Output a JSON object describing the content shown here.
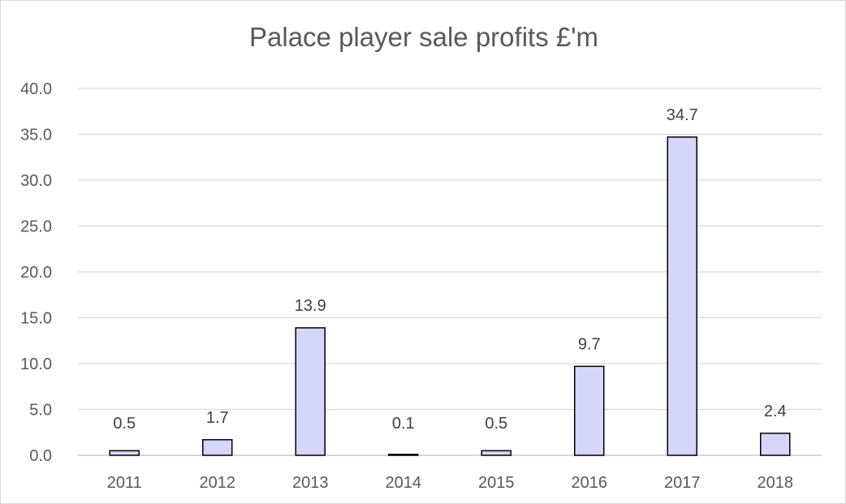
{
  "chart_data": {
    "type": "bar",
    "title": "Palace player sale profits £'m",
    "categories": [
      "2011",
      "2012",
      "2013",
      "2014",
      "2015",
      "2016",
      "2017",
      "2018"
    ],
    "values": [
      0.5,
      1.7,
      13.9,
      0.1,
      0.5,
      9.7,
      34.7,
      2.4
    ],
    "data_labels": [
      "0.5",
      "1.7",
      "13.9",
      "0.1",
      "0.5",
      "9.7",
      "34.7",
      "2.4"
    ],
    "ylim": [
      0,
      40
    ],
    "yticks": [
      "0.0",
      "5.0",
      "10.0",
      "15.0",
      "20.0",
      "25.0",
      "30.0",
      "35.0",
      "40.0"
    ],
    "xlabel": "",
    "ylabel": "",
    "grid": true,
    "legend": "none",
    "bar_color": "#d6d6fb",
    "bar_edge_color": "#000000"
  }
}
